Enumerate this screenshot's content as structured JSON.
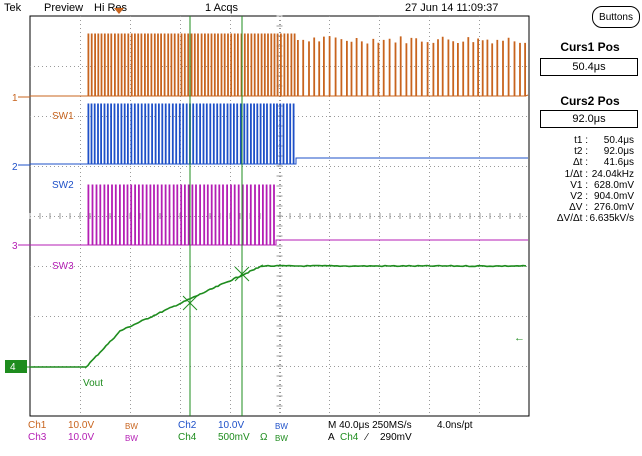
{
  "topbar": {
    "brand": "Tek",
    "mode": "Preview",
    "acq_mode": "Hi Res",
    "acq_count": "1 Acqs",
    "datetime": "27 Jun 14 11:09:37",
    "buttons_label": "Buttons"
  },
  "cursors": {
    "curs1_title": "Curs1 Pos",
    "curs1_value": "50.4μs",
    "curs2_title": "Curs2 Pos",
    "curs2_value": "92.0μs"
  },
  "readouts": [
    {
      "label": "t1 :",
      "value": "50.4μs"
    },
    {
      "label": "t2 :",
      "value": "92.0μs"
    },
    {
      "label": "Δt :",
      "value": "41.6μs"
    },
    {
      "label": "1/Δt :",
      "value": "24.04kHz"
    },
    {
      "label": "V1 :",
      "value": "628.0mV"
    },
    {
      "label": "V2 :",
      "value": "904.0mV"
    },
    {
      "label": "ΔV :",
      "value": "276.0mV"
    },
    {
      "label": "ΔV/Δt :",
      "value": "6.635kV/s"
    }
  ],
  "traces": {
    "ch1_marker": "1",
    "ch2_marker": "2",
    "ch3_marker": "3",
    "ch4_marker": "4",
    "sw1": "SW1",
    "sw2": "SW2",
    "sw3": "SW3",
    "vout": "Vout"
  },
  "footer": {
    "ch1": "Ch1",
    "ch1_scale": "10.0V",
    "ch1_bw": "BW",
    "ch2": "Ch2",
    "ch2_scale": "10.0V",
    "ch2_bw": "BW",
    "ch3": "Ch3",
    "ch3_scale": "10.0V",
    "ch3_bw": "BW",
    "ch4": "Ch4",
    "ch4_scale": "500mV",
    "ch4_ohm": "Ω",
    "ch4_bw": "BW",
    "timebase": "M 40.0μs 250MS/s",
    "resolution": "4.0ns/pt",
    "trigger_a": "A",
    "trigger_ch": "Ch4",
    "trigger_slope": "∕",
    "trigger_level": "290mV"
  },
  "colors": {
    "ch1": "#c8641e",
    "ch2": "#1e50c8",
    "ch3": "#b41eb4",
    "ch4": "#1e8c1e",
    "grid": "#9a9a9a"
  }
}
